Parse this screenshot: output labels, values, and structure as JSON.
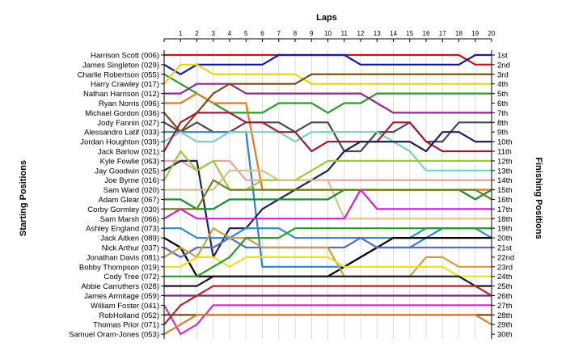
{
  "chart_data": {
    "type": "line",
    "xlabel": "Laps",
    "ylabel_left": "Starting Positions",
    "ylabel_right": "Finishing Positions",
    "laps": [
      1,
      2,
      3,
      4,
      5,
      6,
      7,
      8,
      9,
      10,
      11,
      12,
      13,
      14,
      15,
      16,
      17,
      18,
      19,
      20
    ],
    "start_labels": [
      "Harrison Scott (006)",
      "James Singleton (029)",
      "Charlie Robertson (055)",
      "Harry Crawley (017)",
      "Nathan Harrison (012)",
      "Ryan Norris (096)",
      "Michael Gordon (036)",
      "Jody Fannin (027)",
      "Alessandro Latif (033)",
      "Jordan Houghton (039)",
      "Jack Barlow (021)",
      "Kyle Fowlie (063)",
      "Jay Goodwin (025)",
      "Joe Byrne (016)",
      "Sam Ward (020)",
      "Adam Glear (067)",
      "Corby Gormley (030)",
      "Sam Marsh (066)",
      "Ashley England (073)",
      "Jack Aitken (089)",
      "Nick Arthur (037)",
      "Jonathan Davis (081)",
      "Bobby Thompson (019)",
      "Cody Tree (072)",
      "Abbie Carruthers (028)",
      "James Armitage (059)",
      "William Foster (041)",
      "RobHolland (052)",
      "Thomas Prior (071)",
      "Samuel Oram-Jones (053)"
    ],
    "finish_labels": [
      "1st",
      "2nd",
      "3rd",
      "4th",
      "5th",
      "6th",
      "7th",
      "8th",
      "9th",
      "10th",
      "11th",
      "12th",
      "13th",
      "14th",
      "15th",
      "16th",
      "17th",
      "18th",
      "19th",
      "20th",
      "21st",
      "22nd",
      "23rd",
      "24th",
      "25th",
      "26th",
      "27th",
      "28th",
      "29th",
      "30th"
    ],
    "series": [
      {
        "color": "#c0141e",
        "values": [
          1,
          1,
          1,
          1,
          1,
          1,
          1,
          1,
          1,
          1,
          1,
          1,
          1,
          1,
          1,
          1,
          1,
          1,
          1,
          2,
          2
        ]
      },
      {
        "color": "#1a1a9c",
        "values": [
          2,
          3,
          2,
          2,
          2,
          2,
          2,
          1,
          1,
          1,
          1,
          1,
          2,
          2,
          2,
          2,
          2,
          2,
          2,
          1,
          1
        ]
      },
      {
        "color": "#2c9a2c",
        "values": [
          3,
          4,
          5,
          6,
          7,
          7,
          7,
          6,
          6,
          6,
          7,
          6,
          6,
          5,
          5,
          5,
          5,
          5,
          5,
          5,
          5
        ]
      },
      {
        "color": "#e8d21c",
        "values": [
          4,
          2,
          2,
          3,
          3,
          3,
          3,
          3,
          3,
          4,
          4,
          4,
          4,
          4,
          4,
          4,
          4,
          4,
          4,
          4,
          4
        ]
      },
      {
        "color": "#8c2a8c",
        "values": [
          5,
          5,
          4,
          4,
          4,
          5,
          5,
          5,
          5,
          5,
          5,
          5,
          5,
          6,
          7,
          7,
          7,
          7,
          7,
          7,
          7
        ]
      },
      {
        "color": "#e87818",
        "values": [
          6,
          6,
          5,
          6,
          6,
          6,
          15,
          15,
          15,
          15,
          15,
          15,
          15,
          15,
          15,
          15,
          15,
          15,
          15,
          15,
          15
        ]
      },
      {
        "color": "#7a4a18",
        "values": [
          7,
          9,
          7,
          5,
          4,
          4,
          4,
          4,
          4,
          3,
          3,
          3,
          3,
          3,
          3,
          3,
          3,
          3,
          3,
          3,
          3
        ]
      },
      {
        "color": "#4a4a4a",
        "values": [
          8,
          9,
          8,
          9,
          9,
          8,
          8,
          8,
          9,
          8,
          8,
          11,
          11,
          9,
          9,
          8,
          10,
          10,
          8,
          8,
          8
        ]
      },
      {
        "color": "#2a82d0",
        "values": [
          9,
          9,
          9,
          9,
          9,
          9,
          23,
          23,
          23,
          23,
          23,
          23,
          22,
          21,
          21,
          21,
          20,
          19,
          19,
          19,
          19
        ]
      },
      {
        "color": "#7ad0c0",
        "values": [
          10,
          9,
          10,
          10,
          9,
          9,
          9,
          9,
          10,
          9,
          9,
          9,
          9,
          9,
          10,
          11,
          13,
          13,
          13,
          13,
          13
        ]
      },
      {
        "color": "#a01a3a",
        "values": [
          11,
          8,
          7,
          7,
          7,
          8,
          8,
          9,
          9,
          11,
          10,
          10,
          10,
          10,
          8,
          8,
          10,
          11,
          11,
          11,
          11
        ]
      },
      {
        "color": "#e8a0a0",
        "values": [
          12,
          12,
          13,
          12,
          12,
          14,
          14,
          14,
          14,
          14,
          14,
          14,
          14,
          14,
          14,
          14,
          14,
          14,
          14,
          14,
          14
        ]
      },
      {
        "color": "#20205a",
        "values": [
          13,
          12,
          12,
          22,
          19,
          19,
          17,
          16,
          15,
          14,
          13,
          11,
          10,
          10,
          10,
          10,
          11,
          9,
          9,
          10,
          10
        ]
      },
      {
        "color": "#9cc83c",
        "values": [
          14,
          11,
          13,
          12,
          15,
          15,
          14,
          14,
          14,
          13,
          12,
          12,
          12,
          12,
          12,
          12,
          12,
          12,
          12,
          12,
          12
        ]
      },
      {
        "color": "#d8c090",
        "values": [
          15,
          15,
          15,
          15,
          13,
          13,
          13,
          14,
          14,
          14,
          14,
          18,
          18,
          18,
          18,
          18,
          18,
          18,
          18,
          18,
          18
        ]
      },
      {
        "color": "#1a8a30",
        "values": [
          16,
          16,
          17,
          17,
          16,
          16,
          16,
          16,
          16,
          16,
          16,
          15,
          15,
          15,
          15,
          15,
          15,
          15,
          15,
          16,
          15
        ]
      },
      {
        "color": "#708020",
        "values": [
          17,
          17,
          17,
          14,
          15,
          15,
          15,
          15,
          15,
          15,
          15,
          15,
          15,
          15,
          15,
          15,
          15,
          15,
          15,
          15,
          16
        ]
      },
      {
        "color": "#d020d0",
        "values": [
          18,
          17,
          18,
          18,
          18,
          18,
          18,
          18,
          18,
          18,
          18,
          18,
          15,
          17,
          17,
          17,
          17,
          17,
          17,
          17,
          17
        ]
      },
      {
        "color": "#2e8ec8",
        "values": [
          19,
          19,
          20,
          20,
          20,
          19,
          19,
          19,
          20,
          20,
          20,
          20,
          20,
          20,
          20,
          20,
          19,
          19,
          19,
          19,
          20
        ]
      },
      {
        "color": "#000000",
        "values": [
          20,
          21,
          24,
          24,
          24,
          24,
          24,
          24,
          24,
          24,
          24,
          23,
          22,
          21,
          20,
          20,
          20,
          20,
          20,
          20,
          20
        ]
      },
      {
        "color": "#5a6ac8",
        "values": [
          21,
          22,
          21,
          21,
          20,
          21,
          21,
          21,
          21,
          21,
          21,
          21,
          20,
          21,
          21,
          21,
          21,
          21,
          21,
          21,
          21
        ]
      },
      {
        "color": "#c8a040",
        "values": [
          22,
          21,
          22,
          19,
          20,
          20,
          21,
          21,
          21,
          21,
          21,
          24,
          24,
          24,
          24,
          24,
          22,
          22,
          23,
          23,
          23
        ]
      },
      {
        "color": "#e8e020",
        "values": [
          23,
          23,
          22,
          22,
          23,
          22,
          22,
          22,
          22,
          22,
          22,
          23,
          23,
          23,
          23,
          23,
          23,
          23,
          24,
          24,
          24
        ]
      },
      {
        "color": "#2a9a2a",
        "values": [
          24,
          24,
          24,
          23,
          22,
          20,
          20,
          20,
          19,
          19,
          19,
          19,
          19,
          19,
          19,
          19,
          19,
          19,
          19,
          19,
          19
        ]
      },
      {
        "color": "#1a1a1a",
        "values": [
          25,
          25,
          25,
          24,
          24,
          24,
          24,
          24,
          24,
          24,
          24,
          24,
          24,
          24,
          24,
          24,
          24,
          24,
          24,
          25,
          25
        ]
      },
      {
        "color": "#6a2a7a",
        "values": [
          26,
          26,
          26,
          26,
          26,
          26,
          26,
          26,
          26,
          26,
          26,
          26,
          26,
          26,
          26,
          26,
          26,
          26,
          26,
          26,
          26
        ]
      },
      {
        "color": "#cc30cc",
        "values": [
          27,
          30,
          29,
          27,
          27,
          27,
          27,
          27,
          27,
          27,
          27,
          27,
          27,
          27,
          27,
          27,
          27,
          27,
          27,
          27,
          27
        ]
      },
      {
        "color": "#704018",
        "values": [
          28,
          28,
          28,
          28,
          28,
          28,
          28,
          28,
          28,
          28,
          28,
          28,
          28,
          28,
          28,
          28,
          28,
          28,
          28,
          28,
          28
        ]
      },
      {
        "color": "#b02828",
        "values": [
          29,
          27,
          26,
          25,
          25,
          25,
          25,
          25,
          25,
          25,
          25,
          25,
          25,
          25,
          25,
          25,
          25,
          25,
          25,
          25,
          26
        ]
      },
      {
        "color": "#d08030",
        "values": [
          30,
          29,
          28,
          28,
          28,
          28,
          28,
          28,
          28,
          28,
          28,
          28,
          28,
          28,
          28,
          28,
          28,
          28,
          28,
          28,
          29
        ]
      }
    ]
  }
}
